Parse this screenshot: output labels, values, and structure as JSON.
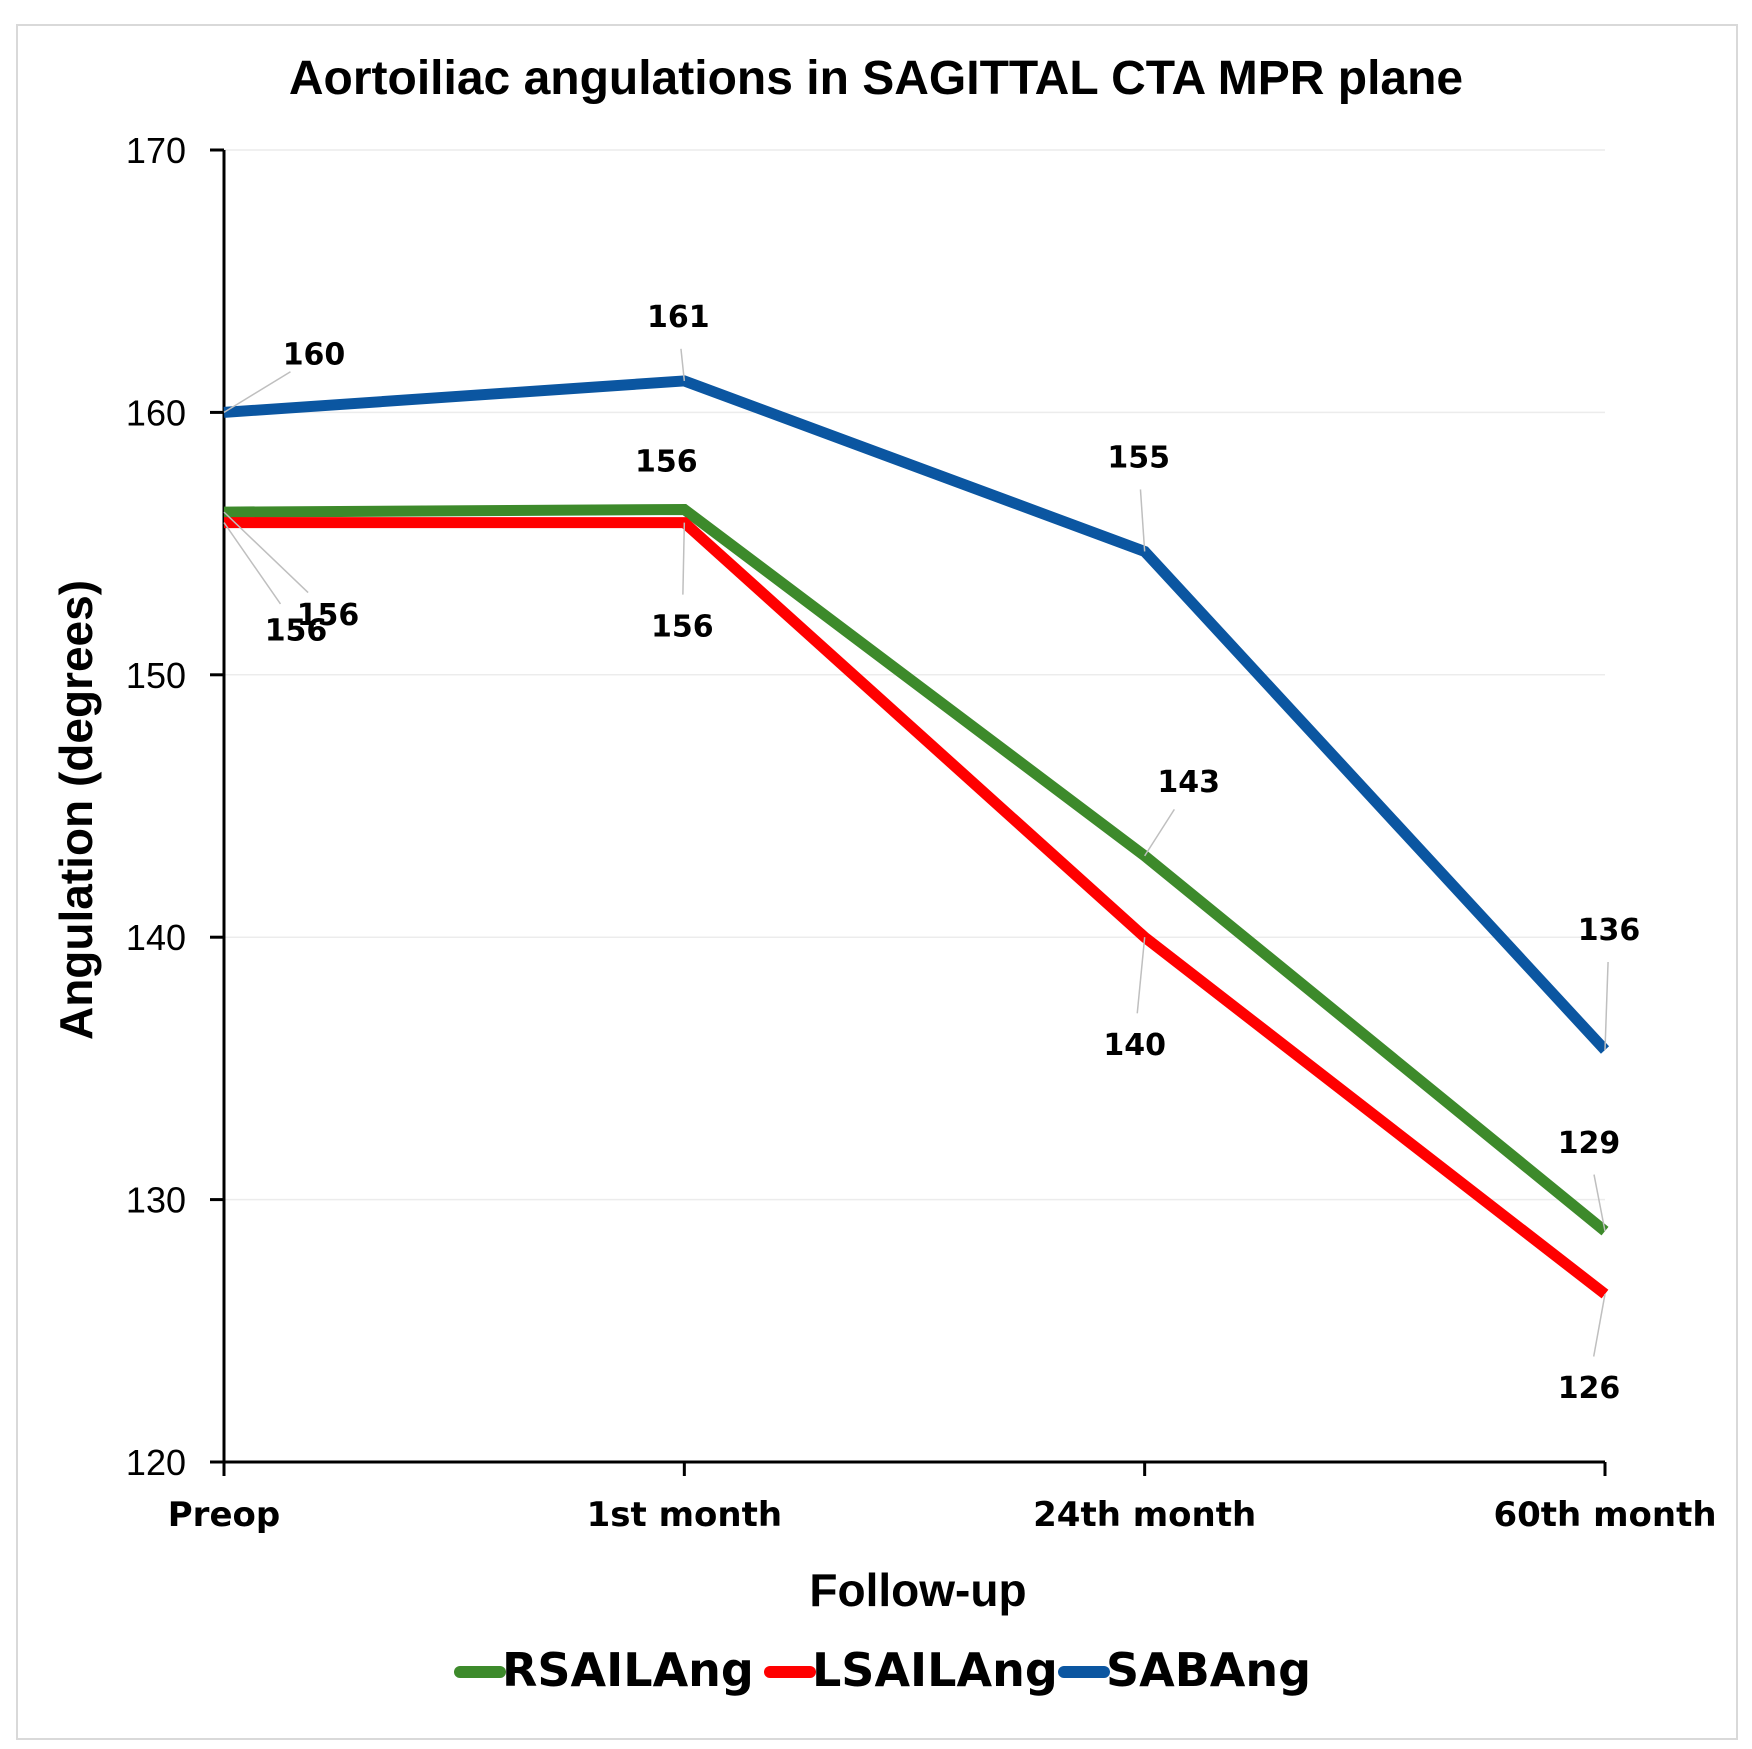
{
  "chart_data": {
    "type": "line",
    "title": "Aortoiliac angulations in SAGITTAL CTA MPR plane",
    "xlabel": "Follow-up",
    "ylabel": "Angulation (degrees)",
    "categories": [
      "Preop",
      "1st month",
      "24th month",
      "60th month"
    ],
    "ylim": [
      120,
      170
    ],
    "yticks": [
      120,
      130,
      140,
      150,
      160,
      170
    ],
    "grid": true,
    "legend_position": "bottom",
    "series": [
      {
        "name": "RSAILAng",
        "color": "#3d8a2b",
        "values": [
          156.2,
          156.3,
          143.1,
          128.8
        ],
        "labels": [
          "156",
          "156",
          "143",
          "129"
        ]
      },
      {
        "name": "LSAILAng",
        "color": "#ff0000",
        "values": [
          155.8,
          155.8,
          140,
          126.4
        ],
        "labels": [
          "156",
          "156",
          "140",
          "126"
        ]
      },
      {
        "name": "SABAng",
        "color": "#0b56a1",
        "values": [
          160,
          161.2,
          154.7,
          135.7
        ],
        "labels": [
          "160",
          "161",
          "155",
          "136"
        ]
      }
    ]
  }
}
